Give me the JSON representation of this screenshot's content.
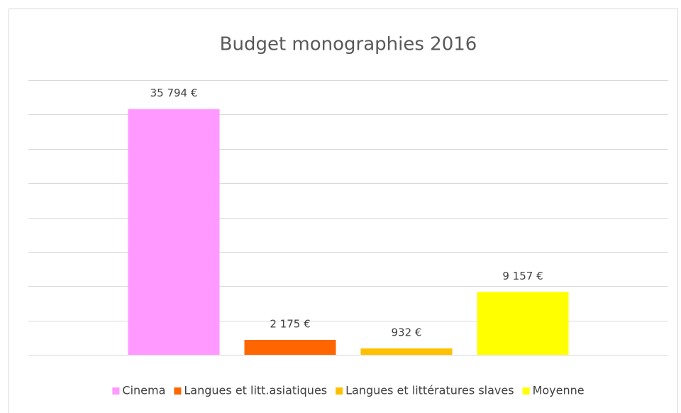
{
  "chart_data": {
    "type": "bar",
    "title": "Budget monographies 2016",
    "categories": [
      null
    ],
    "series": [
      {
        "name": "Cinema",
        "color": "#ff99ff",
        "values": [
          35794
        ],
        "value_labels": [
          "35 794 €"
        ]
      },
      {
        "name": "Langues et litt.asiatiques",
        "color": "#ff6600",
        "values": [
          2175
        ],
        "value_labels": [
          "2 175 €"
        ]
      },
      {
        "name": "Langues et littératures slaves",
        "color": "#ffc000",
        "values": [
          932
        ],
        "value_labels": [
          "932 €"
        ]
      },
      {
        "name": "Moyenne",
        "color": "#ffff00",
        "values": [
          9157
        ],
        "value_labels": [
          "9 157 €"
        ]
      }
    ],
    "ylim": [
      0,
      40000
    ],
    "yticks": [
      0,
      5000,
      10000,
      15000,
      20000,
      25000,
      30000,
      35000,
      40000
    ],
    "grid": true,
    "legend": "bottom"
  }
}
